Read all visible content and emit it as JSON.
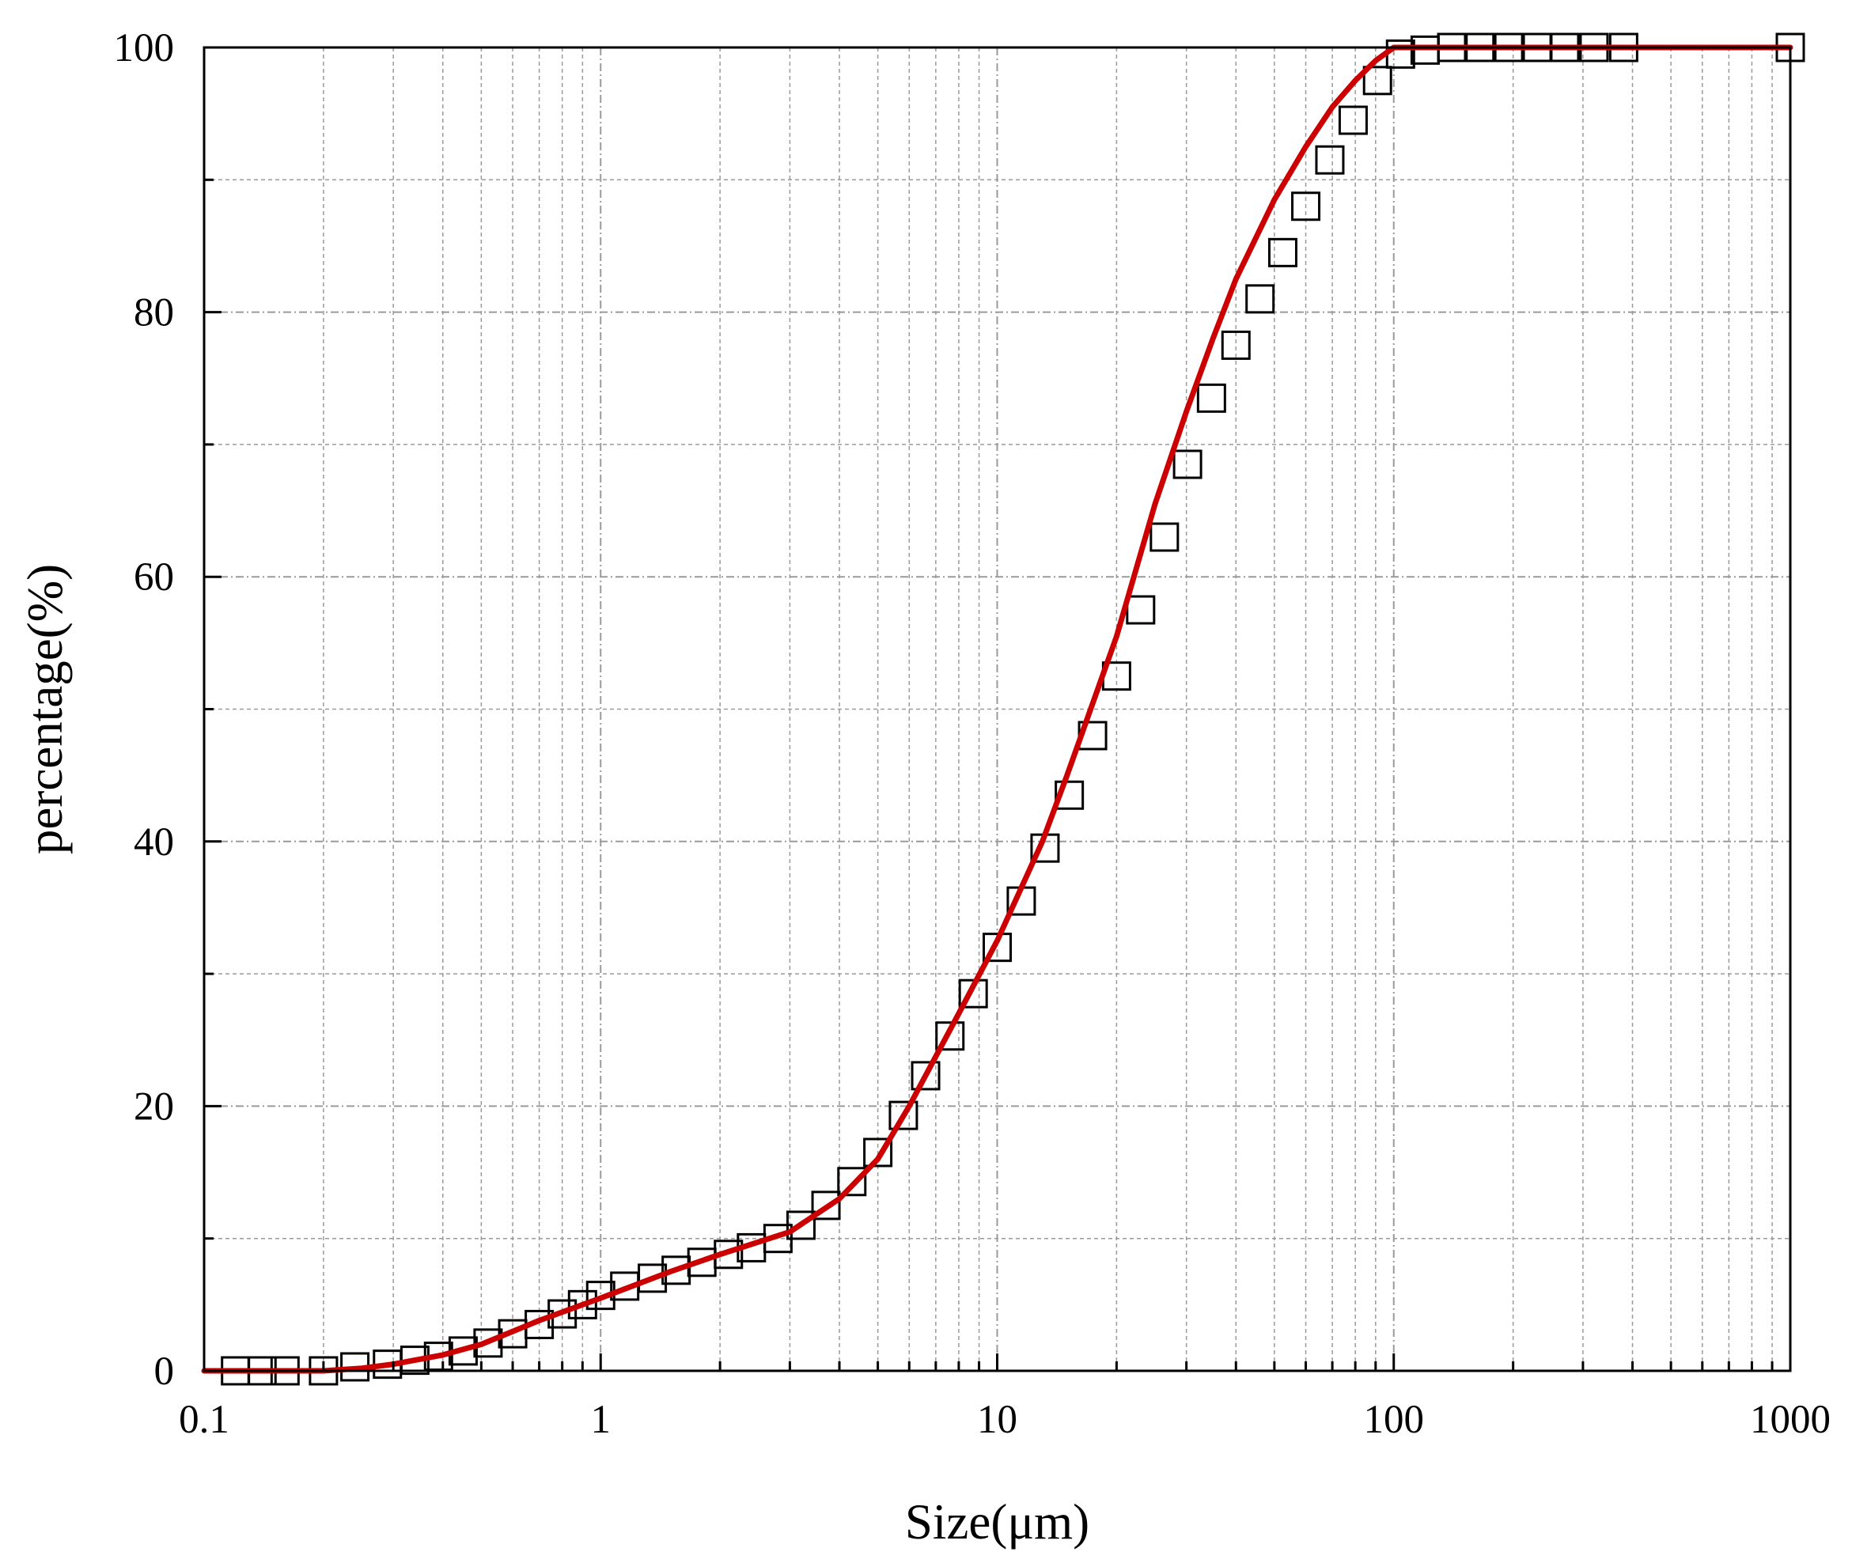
{
  "chart_data": {
    "type": "line",
    "xlabel": "Size(μm)",
    "ylabel": "percentage(%)",
    "xscale": "log",
    "xlim": [
      0.1,
      1000
    ],
    "ylim": [
      0,
      100
    ],
    "xticks": [
      {
        "value": 0.1,
        "label": "0.1"
      },
      {
        "value": 1,
        "label": "1"
      },
      {
        "value": 10,
        "label": "10"
      },
      {
        "value": 100,
        "label": "100"
      },
      {
        "value": 1000,
        "label": "1000"
      }
    ],
    "yticks": [
      {
        "value": 0,
        "label": "0"
      },
      {
        "value": 20,
        "label": "20"
      },
      {
        "value": 40,
        "label": "40"
      },
      {
        "value": 60,
        "label": "60"
      },
      {
        "value": 80,
        "label": "80"
      },
      {
        "value": 100,
        "label": "100"
      }
    ],
    "grid": true,
    "colors": {
      "fit_line": "#cc0000",
      "markers": "#000000",
      "grid": "#9a9a9a",
      "axes": "#000000"
    },
    "marker_shape": "open-square",
    "series": [
      {
        "role": "measured",
        "x": [
          0.12,
          0.14,
          0.16,
          0.2,
          0.24,
          0.29,
          0.34,
          0.39,
          0.45,
          0.52,
          0.6,
          0.7,
          0.8,
          0.9,
          1.0,
          1.15,
          1.35,
          1.55,
          1.8,
          2.1,
          2.4,
          2.8,
          3.2,
          3.7,
          4.3,
          5.0,
          5.8,
          6.6,
          7.6,
          8.7,
          10.0,
          11.5,
          13.2,
          15.2,
          17.4,
          20.0,
          23.0,
          26.4,
          30.2,
          34.7,
          40.0,
          46.0,
          52.5,
          60.0,
          69.0,
          79.0,
          91.0,
          104.0,
          120.0,
          140.0,
          165.0,
          195.0,
          230.0,
          270.0,
          320.0,
          380.0,
          1000.0
        ],
        "y": [
          0,
          0,
          0,
          0,
          0.3,
          0.5,
          0.8,
          1.1,
          1.5,
          2.1,
          2.8,
          3.5,
          4.3,
          5.0,
          5.7,
          6.4,
          7.0,
          7.6,
          8.2,
          8.8,
          9.3,
          10.0,
          11.0,
          12.5,
          14.3,
          16.5,
          19.3,
          22.3,
          25.3,
          28.5,
          32.0,
          35.5,
          39.5,
          43.5,
          48.0,
          52.5,
          57.5,
          63.0,
          68.5,
          73.5,
          77.5,
          81.0,
          84.5,
          88.0,
          91.5,
          94.5,
          97.5,
          99.5,
          99.8,
          100,
          100,
          100,
          100,
          100,
          100,
          100,
          100
        ]
      },
      {
        "role": "fit",
        "x": [
          0.1,
          0.15,
          0.2,
          0.25,
          0.3,
          0.4,
          0.5,
          0.7,
          1.0,
          1.5,
          2.0,
          3.0,
          4.0,
          5.0,
          6.0,
          8.0,
          10.0,
          13.0,
          15.0,
          20.0,
          25.0,
          30.0,
          35.0,
          40.0,
          50.0,
          60.0,
          70.0,
          80.0,
          90.0,
          100.0,
          200.0,
          500.0,
          1000.0
        ],
        "y": [
          0,
          0,
          0,
          0.2,
          0.5,
          1.2,
          2.0,
          3.8,
          5.5,
          7.5,
          8.8,
          10.5,
          13.0,
          16.0,
          20.0,
          27.0,
          32.5,
          40.0,
          45.0,
          55.5,
          65.5,
          72.5,
          78.0,
          82.5,
          88.5,
          92.5,
          95.5,
          97.5,
          99.0,
          100,
          100,
          100,
          100
        ]
      }
    ]
  }
}
